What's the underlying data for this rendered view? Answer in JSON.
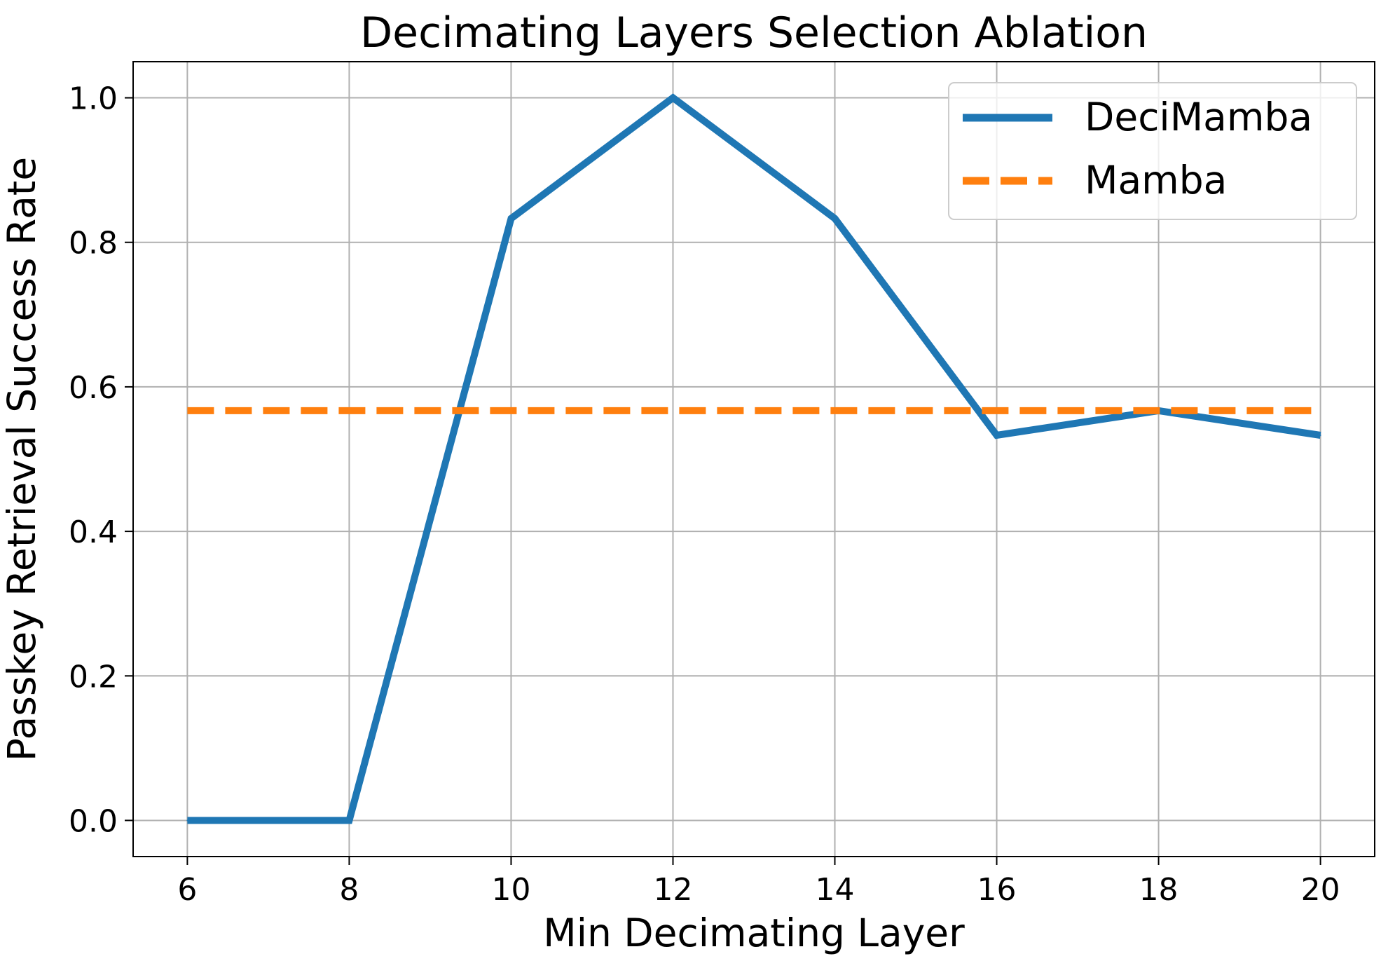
{
  "chart_data": {
    "type": "line",
    "title": "Decimating Layers Selection Ablation",
    "xlabel": "Min Decimating Layer",
    "ylabel": "Passkey Retrieval Success Rate",
    "xlim": [
      5.33,
      20.67
    ],
    "ylim": [
      -0.05,
      1.05
    ],
    "xticks": [
      6,
      8,
      10,
      12,
      14,
      16,
      18,
      20
    ],
    "yticks": [
      0.0,
      0.2,
      0.4,
      0.6,
      0.8,
      1.0
    ],
    "xtick_labels": [
      "6",
      "8",
      "10",
      "12",
      "14",
      "16",
      "18",
      "20"
    ],
    "ytick_labels": [
      "0.0",
      "0.2",
      "0.4",
      "0.6",
      "0.8",
      "1.0"
    ],
    "grid": true,
    "legend_position": "top-right",
    "series": [
      {
        "name": "DeciMamba",
        "color": "#1f77b4",
        "style": "solid",
        "x": [
          6,
          8,
          10,
          12,
          14,
          16,
          18,
          20
        ],
        "y": [
          0.0,
          0.0,
          0.833,
          1.0,
          0.833,
          0.533,
          0.567,
          0.533
        ]
      },
      {
        "name": "Mamba",
        "color": "#ff7f0e",
        "style": "dashed",
        "x": [
          6,
          20
        ],
        "y": [
          0.567,
          0.567
        ]
      }
    ]
  }
}
